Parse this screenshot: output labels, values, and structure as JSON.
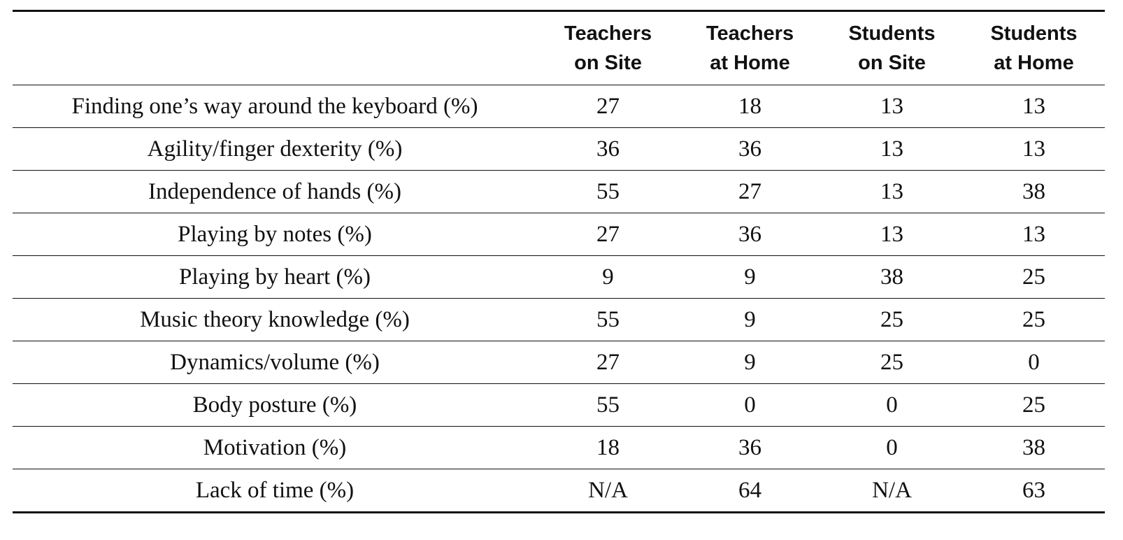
{
  "table": {
    "header_blank": "",
    "columns": [
      {
        "line1": "Teachers",
        "line2": "on Site"
      },
      {
        "line1": "Teachers",
        "line2": "at Home"
      },
      {
        "line1": "Students",
        "line2": "on Site"
      },
      {
        "line1": "Students",
        "line2": "at Home"
      }
    ],
    "rows": [
      {
        "label": "Finding one’s way around the keyboard (%)",
        "values": [
          "27",
          "18",
          "13",
          "13"
        ]
      },
      {
        "label": "Agility/finger dexterity (%)",
        "values": [
          "36",
          "36",
          "13",
          "13"
        ]
      },
      {
        "label": "Independence of hands (%)",
        "values": [
          "55",
          "27",
          "13",
          "38"
        ]
      },
      {
        "label": "Playing by notes (%)",
        "values": [
          "27",
          "36",
          "13",
          "13"
        ]
      },
      {
        "label": "Playing by heart (%)",
        "values": [
          "9",
          "9",
          "38",
          "25"
        ]
      },
      {
        "label": "Music theory knowledge (%)",
        "values": [
          "55",
          "9",
          "25",
          "25"
        ]
      },
      {
        "label": "Dynamics/volume (%)",
        "values": [
          "27",
          "9",
          "25",
          "0"
        ]
      },
      {
        "label": "Body posture (%)",
        "values": [
          "55",
          "0",
          "0",
          "25"
        ]
      },
      {
        "label": "Motivation (%)",
        "values": [
          "18",
          "36",
          "0",
          "38"
        ]
      },
      {
        "label": "Lack of time (%)",
        "values": [
          "N/A",
          "64",
          "N/A",
          "63"
        ]
      }
    ]
  }
}
